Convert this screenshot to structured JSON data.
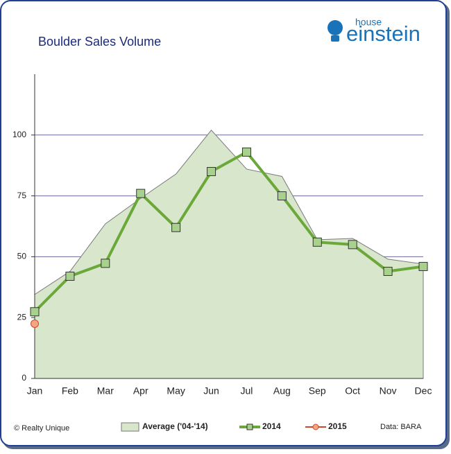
{
  "brand": {
    "small": "house",
    "large": "einstein"
  },
  "credit": "© Realty Unique",
  "source": "Data: BARA",
  "chart_data": {
    "type": "line",
    "title": "Boulder Sales Volume",
    "categories": [
      "Jan",
      "Feb",
      "Mar",
      "Apr",
      "May",
      "Jun",
      "Jul",
      "Aug",
      "Sep",
      "Oct",
      "Nov",
      "Dec"
    ],
    "series": [
      {
        "name": "Average ('04-'14)",
        "type": "area",
        "color": "#d8e6cb",
        "values": [
          34.5,
          44,
          63.5,
          74,
          84,
          102,
          86,
          83,
          57,
          57.5,
          49,
          47
        ]
      },
      {
        "name": "2014",
        "type": "line",
        "color": "#6aa83a",
        "values": [
          27.4,
          42,
          47.3,
          76,
          62,
          85,
          93,
          75,
          56,
          55,
          44,
          46
        ]
      },
      {
        "name": "2015",
        "type": "line",
        "color": "#d0452a",
        "values": [
          22.5,
          null,
          null,
          null,
          null,
          null,
          null,
          null,
          null,
          null,
          null,
          null
        ]
      }
    ],
    "ylim": [
      0,
      125
    ],
    "yticks": [
      0,
      25,
      50,
      75,
      100
    ],
    "grid": true,
    "legend": "bottom"
  }
}
